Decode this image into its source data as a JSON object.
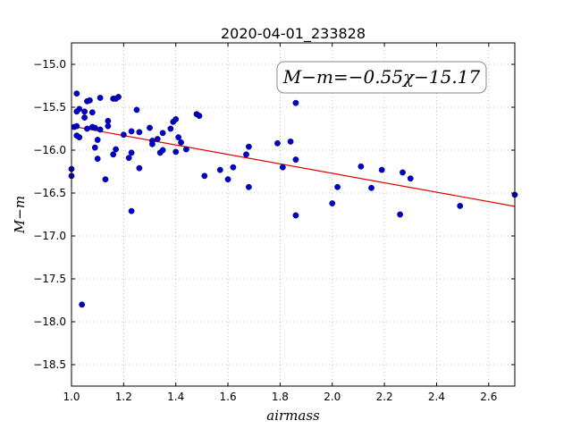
{
  "chart_data": {
    "type": "scatter",
    "title": "2020-04-01_233828",
    "xlabel": "airmass",
    "ylabel": "M−m",
    "xlim": [
      1.0,
      2.7
    ],
    "ylim": [
      -18.75,
      -14.75
    ],
    "y_inverted": true,
    "grid": true,
    "xticks": [
      "1.0",
      "1.2",
      "1.4",
      "1.6",
      "1.8",
      "2.0",
      "2.2",
      "2.4",
      "2.6"
    ],
    "yticks": [
      "−15.0",
      "−15.5",
      "−16.0",
      "−16.5",
      "−17.0",
      "−17.5",
      "−18.0",
      "−18.5"
    ],
    "annotation": "M−m=−0.55χ−15.17",
    "fit_line": {
      "slope": -0.55,
      "intercept": -15.17,
      "color": "#e00000"
    },
    "point_color": "#0000cc",
    "points": [
      {
        "x": 1.0,
        "y": -16.22
      },
      {
        "x": 1.0,
        "y": -16.3
      },
      {
        "x": 1.01,
        "y": -15.73
      },
      {
        "x": 1.02,
        "y": -15.34
      },
      {
        "x": 1.02,
        "y": -15.55
      },
      {
        "x": 1.02,
        "y": -15.72
      },
      {
        "x": 1.02,
        "y": -15.83
      },
      {
        "x": 1.03,
        "y": -15.85
      },
      {
        "x": 1.03,
        "y": -15.52
      },
      {
        "x": 1.04,
        "y": -17.8
      },
      {
        "x": 1.05,
        "y": -15.55
      },
      {
        "x": 1.05,
        "y": -15.62
      },
      {
        "x": 1.06,
        "y": -15.75
      },
      {
        "x": 1.06,
        "y": -15.43
      },
      {
        "x": 1.07,
        "y": -15.42
      },
      {
        "x": 1.08,
        "y": -15.73
      },
      {
        "x": 1.08,
        "y": -15.56
      },
      {
        "x": 1.09,
        "y": -15.97
      },
      {
        "x": 1.09,
        "y": -15.74
      },
      {
        "x": 1.1,
        "y": -15.88
      },
      {
        "x": 1.1,
        "y": -16.1
      },
      {
        "x": 1.11,
        "y": -15.39
      },
      {
        "x": 1.11,
        "y": -15.76
      },
      {
        "x": 1.13,
        "y": -16.34
      },
      {
        "x": 1.14,
        "y": -15.66
      },
      {
        "x": 1.14,
        "y": -15.72
      },
      {
        "x": 1.16,
        "y": -16.05
      },
      {
        "x": 1.16,
        "y": -15.4
      },
      {
        "x": 1.17,
        "y": -15.4
      },
      {
        "x": 1.17,
        "y": -15.99
      },
      {
        "x": 1.18,
        "y": -15.38
      },
      {
        "x": 1.2,
        "y": -15.82
      },
      {
        "x": 1.22,
        "y": -16.09
      },
      {
        "x": 1.23,
        "y": -16.03
      },
      {
        "x": 1.23,
        "y": -15.78
      },
      {
        "x": 1.23,
        "y": -16.71
      },
      {
        "x": 1.25,
        "y": -15.53
      },
      {
        "x": 1.26,
        "y": -15.79
      },
      {
        "x": 1.26,
        "y": -16.21
      },
      {
        "x": 1.3,
        "y": -15.74
      },
      {
        "x": 1.31,
        "y": -15.89
      },
      {
        "x": 1.31,
        "y": -15.93
      },
      {
        "x": 1.33,
        "y": -15.87
      },
      {
        "x": 1.34,
        "y": -16.03
      },
      {
        "x": 1.35,
        "y": -15.8
      },
      {
        "x": 1.35,
        "y": -16.0
      },
      {
        "x": 1.38,
        "y": -15.75
      },
      {
        "x": 1.39,
        "y": -15.67
      },
      {
        "x": 1.4,
        "y": -15.64
      },
      {
        "x": 1.4,
        "y": -16.02
      },
      {
        "x": 1.41,
        "y": -15.85
      },
      {
        "x": 1.42,
        "y": -15.91
      },
      {
        "x": 1.44,
        "y": -15.99
      },
      {
        "x": 1.48,
        "y": -15.58
      },
      {
        "x": 1.49,
        "y": -15.6
      },
      {
        "x": 1.51,
        "y": -16.3
      },
      {
        "x": 1.57,
        "y": -16.23
      },
      {
        "x": 1.6,
        "y": -16.34
      },
      {
        "x": 1.62,
        "y": -16.2
      },
      {
        "x": 1.67,
        "y": -16.05
      },
      {
        "x": 1.68,
        "y": -15.96
      },
      {
        "x": 1.68,
        "y": -16.43
      },
      {
        "x": 1.79,
        "y": -15.92
      },
      {
        "x": 1.81,
        "y": -16.2
      },
      {
        "x": 1.84,
        "y": -15.9
      },
      {
        "x": 1.86,
        "y": -15.45
      },
      {
        "x": 1.86,
        "y": -16.76
      },
      {
        "x": 1.86,
        "y": -16.11
      },
      {
        "x": 2.0,
        "y": -16.62
      },
      {
        "x": 2.02,
        "y": -16.43
      },
      {
        "x": 2.11,
        "y": -16.19
      },
      {
        "x": 2.15,
        "y": -16.44
      },
      {
        "x": 2.19,
        "y": -16.23
      },
      {
        "x": 2.26,
        "y": -16.75
      },
      {
        "x": 2.27,
        "y": -16.26
      },
      {
        "x": 2.3,
        "y": -16.33
      },
      {
        "x": 2.49,
        "y": -16.65
      },
      {
        "x": 2.7,
        "y": -16.52
      }
    ]
  }
}
